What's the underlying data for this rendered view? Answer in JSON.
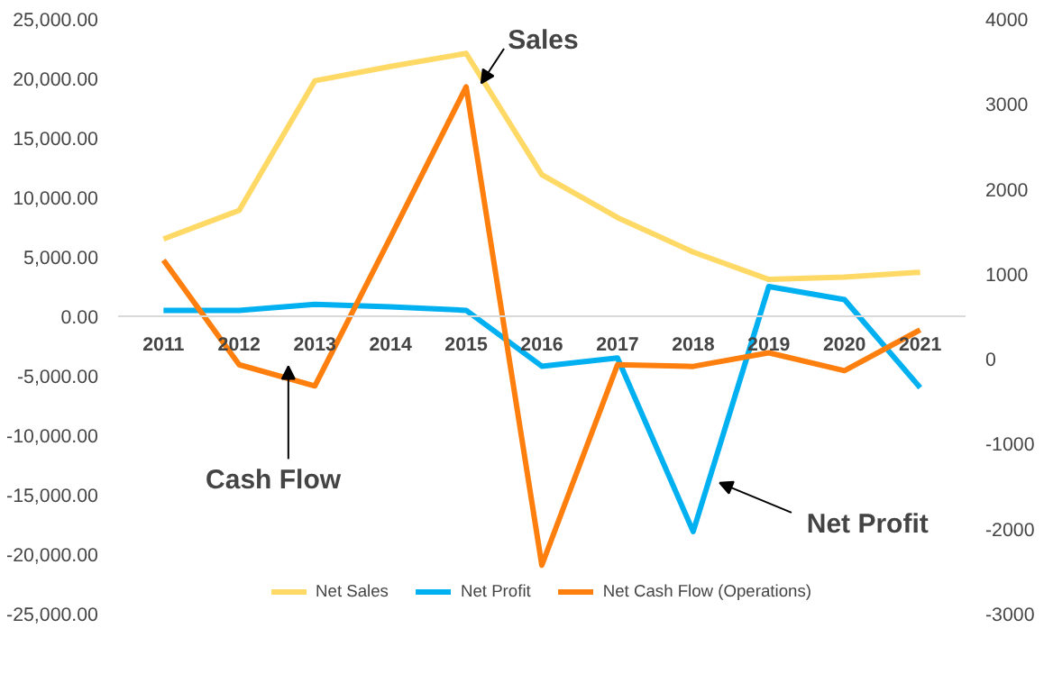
{
  "chart_data": {
    "type": "line",
    "categories": [
      "2011",
      "2012",
      "2013",
      "2014",
      "2015",
      "2016",
      "2017",
      "2018",
      "2019",
      "2020",
      "2021"
    ],
    "series": [
      {
        "name": "Net Sales",
        "color": "#ffd966",
        "values": [
          6500,
          8900,
          19800,
          21000,
          22100,
          11900,
          8300,
          5400,
          3100,
          3300,
          3700
        ]
      },
      {
        "name": "Net Profit",
        "color": "#00b0f0",
        "values": [
          500,
          500,
          1000,
          800,
          500,
          -4200,
          -3500,
          -18100,
          2500,
          1400,
          -6000
        ]
      },
      {
        "name": "Net Cash Flow (Operations)",
        "color": "#ff7f0e",
        "axis": "y2",
        "values": [
          1160,
          -70,
          -320,
          1430,
          3200,
          -2430,
          -70,
          -90,
          70,
          -140,
          340
        ]
      }
    ],
    "ylim": [
      -25000,
      25000
    ],
    "yticks": [
      {
        "value": -25000,
        "label": "-25,000.00"
      },
      {
        "value": -20000,
        "label": "-20,000.00"
      },
      {
        "value": -15000,
        "label": "-15,000.00"
      },
      {
        "value": -10000,
        "label": "-10,000.00"
      },
      {
        "value": -5000,
        "label": "-5,000.00"
      },
      {
        "value": 0,
        "label": "0.00"
      },
      {
        "value": 5000,
        "label": "5,000.00"
      },
      {
        "value": 10000,
        "label": "10,000.00"
      },
      {
        "value": 15000,
        "label": "15,000.00"
      },
      {
        "value": 20000,
        "label": "20,000.00"
      },
      {
        "value": 25000,
        "label": "25,000.00"
      }
    ],
    "y2lim": [
      -3000,
      4000
    ],
    "y2ticks": [
      -3000,
      -2000,
      -1000,
      0,
      1000,
      2000,
      3000,
      4000
    ],
    "annotations": [
      "Sales",
      "Cash Flow",
      "Net Profit"
    ],
    "grid": false,
    "legend": "bottom",
    "marker": "none",
    "line_style": "solid"
  }
}
